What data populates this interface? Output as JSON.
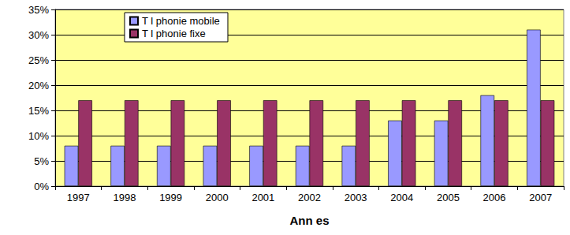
{
  "chart_data": {
    "type": "bar",
    "x_label": "Ann es",
    "categories": [
      "1997",
      "1998",
      "1999",
      "2000",
      "2001",
      "2002",
      "2003",
      "2004",
      "2005",
      "2006",
      "2007"
    ],
    "series": [
      {
        "name": "T l phonie mobile",
        "color": "#9999ff",
        "values": [
          8,
          8,
          8,
          8,
          8,
          8,
          8,
          13,
          13,
          18,
          31
        ]
      },
      {
        "name": "T l phonie fixe",
        "color": "#993366",
        "values": [
          17,
          17,
          17,
          17,
          17,
          17,
          17,
          17,
          17,
          17,
          17
        ]
      }
    ],
    "ylim": [
      0,
      35
    ],
    "yticks": [
      {
        "value": 0,
        "label": "0%"
      },
      {
        "value": 5,
        "label": "5%"
      },
      {
        "value": 10,
        "label": "10%"
      },
      {
        "value": 15,
        "label": "15%"
      },
      {
        "value": 20,
        "label": "20%"
      },
      {
        "value": 25,
        "label": "25%"
      },
      {
        "value": 30,
        "label": "30%"
      },
      {
        "value": 35,
        "label": "35%"
      }
    ],
    "grid": true,
    "legend": "top-left"
  }
}
